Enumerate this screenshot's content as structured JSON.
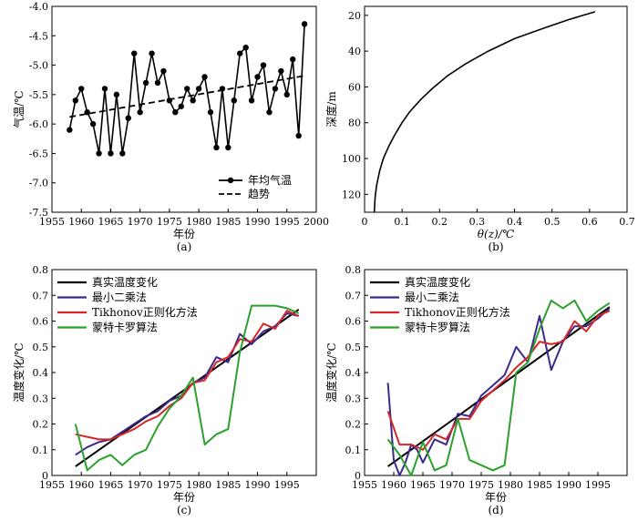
{
  "chart_data": [
    {
      "type": "line",
      "panel_label": "(a)",
      "xlabel": "年份",
      "ylabel": "气温/℃",
      "xlim": [
        1955,
        2000
      ],
      "ylim": [
        -7.5,
        -4.0
      ],
      "x_ticks": [
        1955,
        1960,
        1965,
        1970,
        1975,
        1980,
        1985,
        1990,
        1995,
        2000
      ],
      "x_tick_labels": [
        "1955",
        "1960",
        "1965",
        "1970",
        "1975",
        "1980",
        "1985",
        "1990",
        "1995",
        "2000"
      ],
      "y_ticks": [
        -7.5,
        -7.0,
        -6.5,
        -6.0,
        -5.5,
        -5.0,
        -4.5,
        -4.0
      ],
      "y_tick_labels": [
        "-7.5",
        "-7.0",
        "-6.5",
        "-6.0",
        "-5.5",
        "-5.0",
        "-4.5",
        "-4.0"
      ],
      "legend_position": "bottom-right",
      "series": [
        {
          "name": "年均气温",
          "style": "solid-markers",
          "color": "#000000",
          "x": [
            1958,
            1959,
            1960,
            1961,
            1962,
            1963,
            1964,
            1965,
            1966,
            1967,
            1968,
            1969,
            1970,
            1971,
            1972,
            1973,
            1974,
            1975,
            1976,
            1977,
            1978,
            1979,
            1980,
            1981,
            1982,
            1983,
            1984,
            1985,
            1986,
            1987,
            1988,
            1989,
            1990,
            1991,
            1992,
            1993,
            1994,
            1995,
            1996,
            1997,
            1998
          ],
          "y": [
            -6.1,
            -5.6,
            -5.4,
            -5.8,
            -6.0,
            -6.5,
            -5.4,
            -6.5,
            -5.5,
            -6.5,
            -5.9,
            -4.8,
            -5.8,
            -5.3,
            -4.8,
            -5.3,
            -5.1,
            -5.6,
            -5.8,
            -5.7,
            -5.4,
            -5.6,
            -5.4,
            -5.2,
            -5.8,
            -6.4,
            -5.4,
            -6.4,
            -5.6,
            -4.8,
            -4.7,
            -5.6,
            -5.2,
            -5.0,
            -5.8,
            -5.4,
            -5.1,
            -5.5,
            -4.9,
            -6.2,
            -4.3
          ]
        },
        {
          "name": "趋势",
          "style": "dashed",
          "color": "#000000",
          "x": [
            1958,
            1998
          ],
          "y": [
            -5.88,
            -5.18
          ]
        }
      ]
    },
    {
      "type": "line",
      "panel_label": "(b)",
      "xlabel": "θ(z)/℃",
      "ylabel": "深度/m",
      "xlim": [
        0,
        0.7
      ],
      "ylim": [
        130,
        15
      ],
      "y_inverted": true,
      "x_ticks": [
        0,
        0.1,
        0.2,
        0.3,
        0.4,
        0.5,
        0.6,
        0.7
      ],
      "x_tick_labels": [
        "0",
        "0.1",
        "0.2",
        "0.3",
        "0.4",
        "0.5",
        "0.6",
        "0.7"
      ],
      "y_ticks": [
        20,
        40,
        60,
        80,
        100,
        120
      ],
      "y_tick_labels": [
        "20",
        "40",
        "60",
        "80",
        "100",
        "120"
      ],
      "series": [
        {
          "color": "#000000",
          "x": [
            0.615,
            0.55,
            0.48,
            0.4,
            0.33,
            0.27,
            0.22,
            0.18,
            0.15,
            0.12,
            0.1,
            0.08,
            0.065,
            0.05,
            0.04,
            0.032,
            0.028,
            0.026
          ],
          "y": [
            18,
            22,
            27,
            33,
            40,
            47,
            54,
            61,
            67,
            74,
            80,
            87,
            93,
            100,
            107,
            115,
            122,
            130
          ]
        }
      ]
    },
    {
      "type": "line",
      "panel_label": "(c)",
      "xlabel": "年份",
      "ylabel": "温度变化/℃",
      "xlim": [
        1955,
        2000
      ],
      "ylim": [
        0,
        0.8
      ],
      "x_ticks": [
        1955,
        1960,
        1965,
        1970,
        1975,
        1980,
        1985,
        1990,
        1995
      ],
      "x_tick_labels": [
        "1955",
        "1960",
        "1965",
        "1970",
        "1975",
        "1980",
        "1985",
        "1990",
        "1995"
      ],
      "y_ticks": [
        0,
        0.1,
        0.2,
        0.3,
        0.4,
        0.5,
        0.6,
        0.7,
        0.8
      ],
      "y_tick_labels": [
        "0",
        "0.1",
        "0.2",
        "0.3",
        "0.4",
        "0.5",
        "0.6",
        "0.7",
        "0.8"
      ],
      "legend_position": "top-left",
      "series": [
        {
          "name": "真实温度变化",
          "color": "#000000",
          "x": [
            1959,
            1997
          ],
          "y": [
            0.035,
            0.645
          ]
        },
        {
          "name": "最小二乘法",
          "color": "#3b2a8a",
          "x": [
            1959,
            1961,
            1963,
            1965,
            1967,
            1969,
            1971,
            1973,
            1975,
            1977,
            1979,
            1981,
            1983,
            1985,
            1987,
            1989,
            1991,
            1993,
            1995,
            1997
          ],
          "y": [
            0.08,
            0.11,
            0.13,
            0.14,
            0.17,
            0.2,
            0.23,
            0.25,
            0.29,
            0.31,
            0.36,
            0.38,
            0.46,
            0.44,
            0.55,
            0.51,
            0.56,
            0.58,
            0.63,
            0.62
          ]
        },
        {
          "name": "Tikhonov正则化方法",
          "color": "#d62728",
          "x": [
            1959,
            1961,
            1963,
            1965,
            1967,
            1969,
            1971,
            1973,
            1975,
            1977,
            1979,
            1981,
            1983,
            1985,
            1987,
            1989,
            1991,
            1993,
            1995,
            1997
          ],
          "y": [
            0.16,
            0.15,
            0.14,
            0.14,
            0.16,
            0.18,
            0.21,
            0.23,
            0.27,
            0.3,
            0.36,
            0.37,
            0.44,
            0.46,
            0.53,
            0.52,
            0.59,
            0.57,
            0.64,
            0.62
          ]
        },
        {
          "name": "蒙特卡罗算法",
          "color": "#2ca02c",
          "x": [
            1959,
            1961,
            1963,
            1965,
            1967,
            1969,
            1971,
            1973,
            1975,
            1977,
            1979,
            1981,
            1983,
            1985,
            1987,
            1989,
            1991,
            1993,
            1995,
            1997
          ],
          "y": [
            0.2,
            0.02,
            0.06,
            0.08,
            0.04,
            0.08,
            0.1,
            0.19,
            0.26,
            0.31,
            0.38,
            0.12,
            0.16,
            0.18,
            0.48,
            0.66,
            0.66,
            0.66,
            0.65,
            0.63
          ]
        }
      ]
    },
    {
      "type": "line",
      "panel_label": "(d)",
      "xlabel": "年份",
      "ylabel": "温度变化/℃",
      "xlim": [
        1955,
        2000
      ],
      "ylim": [
        0,
        0.8
      ],
      "x_ticks": [
        1955,
        1960,
        1965,
        1970,
        1975,
        1980,
        1985,
        1990,
        1995
      ],
      "x_tick_labels": [
        "1955",
        "1960",
        "1965",
        "1970",
        "1975",
        "1980",
        "1985",
        "1990",
        "1995"
      ],
      "y_ticks": [
        0,
        0.1,
        0.2,
        0.3,
        0.4,
        0.5,
        0.6,
        0.7,
        0.8
      ],
      "y_tick_labels": [
        "0",
        "0.1",
        "0.2",
        "0.3",
        "0.4",
        "0.5",
        "0.6",
        "0.7",
        "0.8"
      ],
      "legend_position": "top-left",
      "series": [
        {
          "name": "真实温度变化",
          "color": "#000000",
          "x": [
            1959,
            1997
          ],
          "y": [
            0.035,
            0.655
          ]
        },
        {
          "name": "最小二乘法",
          "color": "#3b2a8a",
          "x": [
            1959,
            1960,
            1961,
            1962,
            1963,
            1964,
            1965,
            1967,
            1969,
            1971,
            1973,
            1975,
            1977,
            1979,
            1981,
            1983,
            1985,
            1987,
            1989,
            1991,
            1993,
            1995,
            1997
          ],
          "y": [
            0.36,
            0.06,
            0.0,
            0.05,
            0.12,
            0.1,
            0.05,
            0.14,
            0.12,
            0.24,
            0.23,
            0.31,
            0.35,
            0.39,
            0.5,
            0.44,
            0.62,
            0.41,
            0.52,
            0.58,
            0.58,
            0.61,
            0.65
          ]
        },
        {
          "name": "Tikhonov正则化方法",
          "color": "#d62728",
          "x": [
            1959,
            1961,
            1963,
            1965,
            1967,
            1969,
            1971,
            1973,
            1975,
            1977,
            1979,
            1981,
            1983,
            1985,
            1987,
            1989,
            1991,
            1993,
            1995,
            1997
          ],
          "y": [
            0.25,
            0.12,
            0.12,
            0.1,
            0.16,
            0.14,
            0.22,
            0.22,
            0.29,
            0.33,
            0.37,
            0.42,
            0.46,
            0.52,
            0.51,
            0.52,
            0.6,
            0.56,
            0.62,
            0.64
          ]
        },
        {
          "name": "蒙特卡罗算法",
          "color": "#2ca02c",
          "x": [
            1959,
            1961,
            1963,
            1965,
            1967,
            1969,
            1971,
            1973,
            1975,
            1977,
            1979,
            1981,
            1983,
            1985,
            1987,
            1989,
            1991,
            1993,
            1995,
            1997
          ],
          "y": [
            0.14,
            0.08,
            0.0,
            0.13,
            0.02,
            0.04,
            0.22,
            0.06,
            0.04,
            0.02,
            0.04,
            0.4,
            0.44,
            0.57,
            0.68,
            0.65,
            0.68,
            0.6,
            0.64,
            0.67
          ]
        }
      ]
    }
  ]
}
